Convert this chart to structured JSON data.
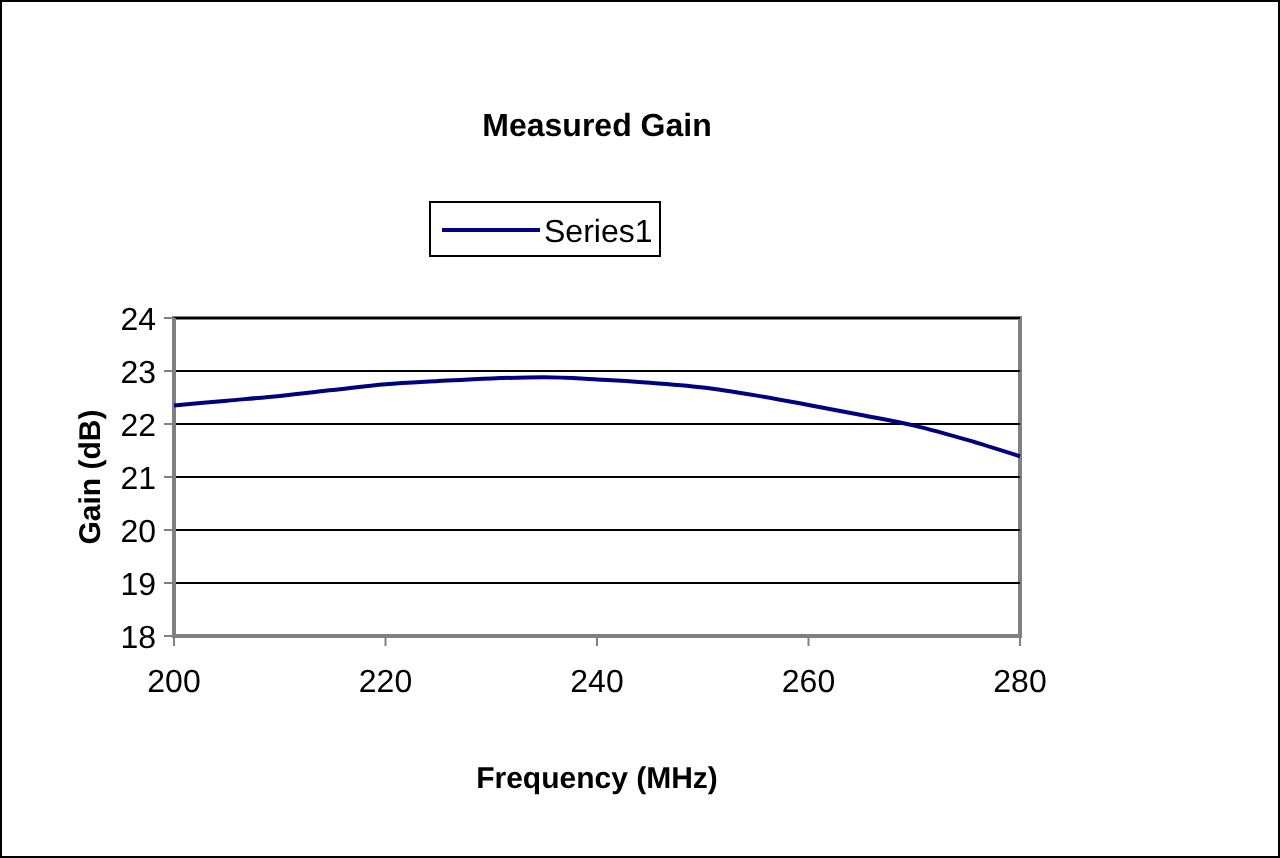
{
  "chart_data": {
    "type": "line",
    "title": "Measured Gain",
    "xlabel": "Frequency (MHz)",
    "ylabel": "Gain (dB)",
    "x": [
      200,
      205,
      210,
      215,
      220,
      225,
      230,
      235,
      240,
      245,
      250,
      255,
      260,
      265,
      270,
      275,
      280
    ],
    "series": [
      {
        "name": "Series1",
        "color": "#000080",
        "values": [
          22.35,
          22.44,
          22.53,
          22.64,
          22.75,
          22.81,
          22.86,
          22.88,
          22.84,
          22.78,
          22.69,
          22.54,
          22.36,
          22.17,
          21.97,
          21.7,
          21.39
        ]
      }
    ],
    "xlim": [
      200,
      280
    ],
    "xticks": [
      200,
      220,
      240,
      260,
      280
    ],
    "ylim": [
      18,
      24
    ],
    "yticks": [
      18,
      19,
      20,
      21,
      22,
      23,
      24
    ],
    "grid": "y",
    "legend": "top",
    "marker": "none",
    "line_style": "solid"
  }
}
